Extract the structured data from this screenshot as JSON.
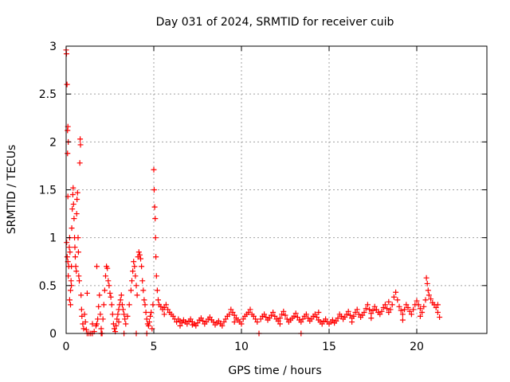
{
  "chart_data": {
    "type": "scatter",
    "title": "Day 031 of 2024, SRMTID for receiver cuib",
    "xlabel": "GPS time / hours",
    "ylabel": "SRMTID / TECUs",
    "xlim": [
      0,
      24
    ],
    "ylim": [
      0,
      3
    ],
    "xticks": [
      0,
      5,
      10,
      15,
      20
    ],
    "yticks": [
      0,
      0.5,
      1,
      1.5,
      2,
      2.5,
      3
    ],
    "xtick_labels": [
      "0",
      "5",
      "10",
      "15",
      "20"
    ],
    "ytick_labels": [
      "0",
      "0.5",
      "1",
      "1.5",
      "2",
      "2.5",
      "3"
    ],
    "grid": true,
    "marker": "plus",
    "color": "#ff0000",
    "series": [
      {
        "name": "SRMTID",
        "points": [
          [
            0.0,
            2.96
          ],
          [
            0.02,
            2.92
          ],
          [
            0.05,
            2.6
          ],
          [
            0.08,
            2.12
          ],
          [
            0.1,
            2.16
          ],
          [
            0.12,
            2.0
          ],
          [
            0.08,
            1.88
          ],
          [
            0.1,
            1.43
          ],
          [
            0.03,
            0.95
          ],
          [
            0.06,
            0.8
          ],
          [
            0.1,
            0.75
          ],
          [
            0.12,
            0.6
          ],
          [
            0.15,
            0.7
          ],
          [
            0.18,
            0.9
          ],
          [
            0.2,
            1.0
          ],
          [
            0.22,
            0.85
          ],
          [
            0.25,
            0.45
          ],
          [
            0.28,
            0.55
          ],
          [
            0.3,
            0.7
          ],
          [
            0.32,
            1.1
          ],
          [
            0.35,
            1.3
          ],
          [
            0.38,
            1.45
          ],
          [
            0.4,
            1.52
          ],
          [
            0.42,
            1.35
          ],
          [
            0.45,
            1.2
          ],
          [
            0.48,
            1.0
          ],
          [
            0.5,
            0.9
          ],
          [
            0.52,
            0.8
          ],
          [
            0.55,
            0.7
          ],
          [
            0.58,
            0.65
          ],
          [
            0.6,
            1.25
          ],
          [
            0.62,
            1.4
          ],
          [
            0.65,
            1.47
          ],
          [
            0.68,
            1.0
          ],
          [
            0.7,
            0.85
          ],
          [
            0.72,
            0.6
          ],
          [
            0.75,
            0.55
          ],
          [
            0.2,
            0.35
          ],
          [
            0.25,
            0.3
          ],
          [
            0.3,
            0.5
          ],
          [
            0.78,
            1.78
          ],
          [
            0.8,
            2.03
          ],
          [
            0.82,
            1.97
          ],
          [
            0.85,
            0.4
          ],
          [
            0.88,
            0.25
          ],
          [
            0.9,
            0.18
          ],
          [
            0.95,
            0.1
          ],
          [
            1.0,
            0.05
          ],
          [
            1.05,
            0.2
          ],
          [
            1.1,
            0.12
          ],
          [
            1.15,
            0.04
          ],
          [
            1.2,
            0.0
          ],
          [
            1.3,
            0.0
          ],
          [
            1.4,
            0.0
          ],
          [
            1.5,
            0.0
          ],
          [
            1.6,
            0.02
          ],
          [
            1.7,
            0.08
          ],
          [
            1.75,
            0.1
          ],
          [
            1.8,
            0.15
          ],
          [
            1.85,
            0.28
          ],
          [
            1.9,
            0.4
          ],
          [
            1.95,
            0.2
          ],
          [
            2.0,
            0.05
          ],
          [
            2.05,
            0.0
          ],
          [
            1.75,
            0.7
          ],
          [
            1.2,
            0.42
          ],
          [
            2.1,
            0.15
          ],
          [
            2.15,
            0.3
          ],
          [
            2.2,
            0.45
          ],
          [
            2.25,
            0.6
          ],
          [
            2.3,
            0.7
          ],
          [
            2.35,
            0.68
          ],
          [
            2.4,
            0.55
          ],
          [
            2.45,
            0.5
          ],
          [
            2.5,
            0.42
          ],
          [
            2.55,
            0.38
          ],
          [
            2.6,
            0.3
          ],
          [
            2.65,
            0.2
          ],
          [
            2.7,
            0.1
          ],
          [
            2.75,
            0.05
          ],
          [
            2.8,
            0.02
          ],
          [
            2.85,
            0.08
          ],
          [
            2.9,
            0.15
          ],
          [
            2.95,
            0.2
          ],
          [
            3.0,
            0.25
          ],
          [
            3.05,
            0.3
          ],
          [
            3.1,
            0.35
          ],
          [
            3.15,
            0.4
          ],
          [
            3.2,
            0.3
          ],
          [
            3.25,
            0.25
          ],
          [
            3.3,
            0.2
          ],
          [
            3.35,
            0.15
          ],
          [
            3.4,
            0.1
          ],
          [
            3.3,
            0.0
          ],
          [
            3.5,
            0.18
          ],
          [
            3.6,
            0.3
          ],
          [
            3.7,
            0.45
          ],
          [
            3.75,
            0.55
          ],
          [
            3.8,
            0.65
          ],
          [
            3.85,
            0.75
          ],
          [
            3.9,
            0.7
          ],
          [
            3.95,
            0.6
          ],
          [
            4.0,
            0.5
          ],
          [
            4.05,
            0.4
          ],
          [
            4.1,
            0.8
          ],
          [
            4.15,
            0.85
          ],
          [
            4.2,
            0.82
          ],
          [
            4.25,
            0.78
          ],
          [
            4.3,
            0.7
          ],
          [
            4.35,
            0.55
          ],
          [
            4.4,
            0.45
          ],
          [
            4.45,
            0.35
          ],
          [
            4.5,
            0.3
          ],
          [
            4.55,
            0.22
          ],
          [
            4.6,
            0.15
          ],
          [
            4.65,
            0.1
          ],
          [
            4.7,
            0.08
          ],
          [
            4.75,
            0.12
          ],
          [
            4.8,
            0.18
          ],
          [
            4.85,
            0.22
          ],
          [
            4.0,
            0.0
          ],
          [
            4.6,
            0.0
          ],
          [
            4.9,
            0.05
          ],
          [
            4.95,
            0.3
          ],
          [
            5.0,
            1.71
          ],
          [
            5.02,
            1.5
          ],
          [
            5.05,
            1.32
          ],
          [
            5.08,
            1.2
          ],
          [
            5.1,
            1.0
          ],
          [
            5.12,
            0.8
          ],
          [
            5.15,
            0.6
          ],
          [
            5.2,
            0.45
          ],
          [
            5.25,
            0.35
          ],
          [
            5.3,
            0.3
          ],
          [
            5.4,
            0.28
          ],
          [
            5.5,
            0.25
          ],
          [
            5.6,
            0.27
          ],
          [
            5.7,
            0.3
          ],
          [
            5.8,
            0.25
          ],
          [
            5.9,
            0.22
          ],
          [
            6.0,
            0.2
          ],
          [
            6.1,
            0.18
          ],
          [
            6.2,
            0.15
          ],
          [
            6.3,
            0.12
          ],
          [
            6.4,
            0.15
          ],
          [
            6.5,
            0.13
          ],
          [
            6.6,
            0.11
          ],
          [
            6.7,
            0.14
          ],
          [
            6.8,
            0.12
          ],
          [
            6.9,
            0.1
          ],
          [
            7.0,
            0.13
          ],
          [
            7.1,
            0.15
          ],
          [
            7.2,
            0.12
          ],
          [
            7.3,
            0.1
          ],
          [
            7.4,
            0.08
          ],
          [
            7.5,
            0.11
          ],
          [
            7.6,
            0.14
          ],
          [
            7.7,
            0.16
          ],
          [
            7.8,
            0.13
          ],
          [
            7.9,
            0.1
          ],
          [
            8.0,
            0.12
          ],
          [
            8.1,
            0.15
          ],
          [
            8.2,
            0.17
          ],
          [
            8.3,
            0.14
          ],
          [
            8.4,
            0.12
          ],
          [
            8.5,
            0.09
          ],
          [
            8.6,
            0.11
          ],
          [
            8.7,
            0.13
          ],
          [
            8.8,
            0.1
          ],
          [
            8.9,
            0.08
          ],
          [
            9.0,
            0.12
          ],
          [
            9.1,
            0.15
          ],
          [
            9.2,
            0.18
          ],
          [
            9.3,
            0.2
          ],
          [
            9.4,
            0.25
          ],
          [
            9.5,
            0.22
          ],
          [
            9.6,
            0.19
          ],
          [
            9.7,
            0.16
          ],
          [
            9.8,
            0.14
          ],
          [
            9.9,
            0.12
          ],
          [
            10.0,
            0.1
          ],
          [
            10.1,
            0.15
          ],
          [
            10.2,
            0.18
          ],
          [
            10.3,
            0.2
          ],
          [
            10.4,
            0.22
          ],
          [
            10.5,
            0.25
          ],
          [
            10.6,
            0.2
          ],
          [
            10.7,
            0.18
          ],
          [
            10.8,
            0.15
          ],
          [
            10.9,
            0.12
          ],
          [
            11.0,
            0.0
          ],
          [
            11.1,
            0.15
          ],
          [
            11.2,
            0.18
          ],
          [
            11.3,
            0.2
          ],
          [
            11.4,
            0.17
          ],
          [
            11.5,
            0.14
          ],
          [
            11.6,
            0.16
          ],
          [
            11.7,
            0.19
          ],
          [
            11.8,
            0.22
          ],
          [
            11.9,
            0.18
          ],
          [
            12.0,
            0.15
          ],
          [
            12.1,
            0.13
          ],
          [
            12.2,
            0.16
          ],
          [
            12.3,
            0.2
          ],
          [
            12.4,
            0.23
          ],
          [
            12.5,
            0.19
          ],
          [
            12.6,
            0.15
          ],
          [
            12.7,
            0.12
          ],
          [
            12.8,
            0.14
          ],
          [
            12.9,
            0.16
          ],
          [
            13.0,
            0.18
          ],
          [
            13.1,
            0.21
          ],
          [
            13.2,
            0.17
          ],
          [
            13.3,
            0.14
          ],
          [
            13.4,
            0.12
          ],
          [
            13.5,
            0.15
          ],
          [
            13.6,
            0.18
          ],
          [
            13.7,
            0.2
          ],
          [
            13.8,
            0.16
          ],
          [
            13.9,
            0.13
          ],
          [
            14.0,
            0.15
          ],
          [
            14.1,
            0.18
          ],
          [
            14.2,
            0.2
          ],
          [
            14.3,
            0.17
          ],
          [
            14.4,
            0.14
          ],
          [
            14.5,
            0.12
          ],
          [
            14.6,
            0.1
          ],
          [
            14.7,
            0.13
          ],
          [
            14.8,
            0.15
          ],
          [
            14.9,
            0.12
          ],
          [
            15.0,
            0.1
          ],
          [
            15.1,
            0.12
          ],
          [
            15.2,
            0.14
          ],
          [
            15.3,
            0.11
          ],
          [
            15.4,
            0.13
          ],
          [
            15.5,
            0.16
          ],
          [
            15.6,
            0.2
          ],
          [
            15.7,
            0.18
          ],
          [
            15.8,
            0.15
          ],
          [
            15.9,
            0.17
          ],
          [
            16.0,
            0.2
          ],
          [
            16.1,
            0.23
          ],
          [
            16.2,
            0.19
          ],
          [
            16.3,
            0.16
          ],
          [
            16.4,
            0.18
          ],
          [
            16.5,
            0.22
          ],
          [
            16.6,
            0.25
          ],
          [
            16.7,
            0.2
          ],
          [
            16.8,
            0.17
          ],
          [
            16.9,
            0.19
          ],
          [
            17.0,
            0.22
          ],
          [
            17.1,
            0.26
          ],
          [
            17.2,
            0.3
          ],
          [
            17.3,
            0.25
          ],
          [
            17.4,
            0.21
          ],
          [
            17.5,
            0.24
          ],
          [
            17.6,
            0.28
          ],
          [
            17.7,
            0.25
          ],
          [
            17.8,
            0.22
          ],
          [
            17.9,
            0.2
          ],
          [
            18.0,
            0.23
          ],
          [
            18.1,
            0.27
          ],
          [
            18.2,
            0.3
          ],
          [
            18.3,
            0.26
          ],
          [
            18.4,
            0.22
          ],
          [
            18.5,
            0.25
          ],
          [
            18.6,
            0.3
          ],
          [
            18.7,
            0.38
          ],
          [
            18.8,
            0.43
          ],
          [
            18.9,
            0.35
          ],
          [
            19.0,
            0.28
          ],
          [
            19.1,
            0.24
          ],
          [
            19.2,
            0.2
          ],
          [
            19.3,
            0.25
          ],
          [
            19.4,
            0.3
          ],
          [
            19.5,
            0.27
          ],
          [
            19.6,
            0.23
          ],
          [
            19.7,
            0.2
          ],
          [
            19.8,
            0.25
          ],
          [
            19.9,
            0.3
          ],
          [
            20.0,
            0.34
          ],
          [
            20.1,
            0.3
          ],
          [
            20.2,
            0.26
          ],
          [
            20.3,
            0.22
          ],
          [
            20.4,
            0.28
          ],
          [
            20.5,
            0.35
          ],
          [
            20.55,
            0.58
          ],
          [
            20.6,
            0.52
          ],
          [
            20.65,
            0.45
          ],
          [
            20.7,
            0.4
          ],
          [
            20.8,
            0.36
          ],
          [
            20.9,
            0.32
          ],
          [
            21.0,
            0.3
          ],
          [
            21.1,
            0.27
          ],
          [
            21.2,
            0.22
          ],
          [
            21.3,
            0.17
          ],
          [
            1.5,
            0.1
          ],
          [
            2.0,
            0.0
          ],
          [
            3.0,
            0.12
          ],
          [
            5.6,
            0.2
          ],
          [
            6.5,
            0.08
          ],
          [
            7.2,
            0.09
          ],
          [
            9.6,
            0.12
          ],
          [
            12.2,
            0.1
          ],
          [
            13.4,
            0.0
          ],
          [
            14.4,
            0.22
          ],
          [
            16.3,
            0.12
          ],
          [
            17.4,
            0.16
          ],
          [
            18.4,
            0.33
          ],
          [
            19.2,
            0.14
          ],
          [
            20.2,
            0.18
          ],
          [
            21.2,
            0.3
          ]
        ]
      }
    ]
  }
}
